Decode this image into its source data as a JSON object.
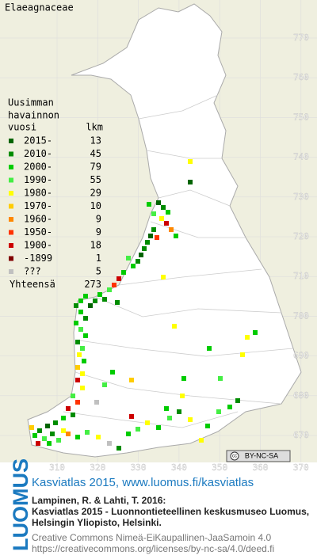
{
  "map": {
    "title": "Elaeagnaceae",
    "legend": {
      "header": [
        "Uusimman",
        "havainnon",
        "vuosi"
      ],
      "count_header": "lkm",
      "rows": [
        {
          "label": "2015-",
          "count": 13,
          "color": "#006400"
        },
        {
          "label": "2010-",
          "count": 45,
          "color": "#008c00"
        },
        {
          "label": "2000-",
          "count": 79,
          "color": "#00cc00"
        },
        {
          "label": "1990-",
          "count": 55,
          "color": "#44ee44"
        },
        {
          "label": "1980-",
          "count": 29,
          "color": "#ffff00"
        },
        {
          "label": "1970-",
          "count": 10,
          "color": "#ffcc00"
        },
        {
          "label": "1960-",
          "count": 9,
          "color": "#ff8800"
        },
        {
          "label": "1950-",
          "count": 9,
          "color": "#ff3300"
        },
        {
          "label": "1900-",
          "count": 18,
          "color": "#cc0000"
        },
        {
          "label": "-1899",
          "count": 1,
          "color": "#800000"
        },
        {
          "label": "???",
          "count": 5,
          "color": "#c0c0c0"
        }
      ],
      "total_label": "Yhteensä",
      "total": 273
    },
    "y_grid": [
      770,
      760,
      750,
      740,
      730,
      720,
      710,
      700,
      690,
      680,
      670
    ],
    "x_grid": [
      310,
      320,
      330,
      340,
      350,
      360,
      370
    ],
    "badge": [
      "cc",
      "BY-NC-SA"
    ]
  },
  "footer": {
    "logo": "LUOMUS",
    "link": "Kasviatlas 2015, www.luomus.fi/kasviatlas",
    "citation": [
      "Lampinen, R. & Lahti, T. 2016:",
      "Kasviatlas 2015 - Luonnontieteellinen keskusmuseo Luomus,",
      "Helsingin Yliopisto, Helsinki."
    ],
    "license": [
      "Creative Commons Nimeä-EiKaupallinen-JaaSamoin 4.0",
      "https://creativecommons.org/licenses/by-nc-sa/4.0/deed.fi"
    ]
  }
}
